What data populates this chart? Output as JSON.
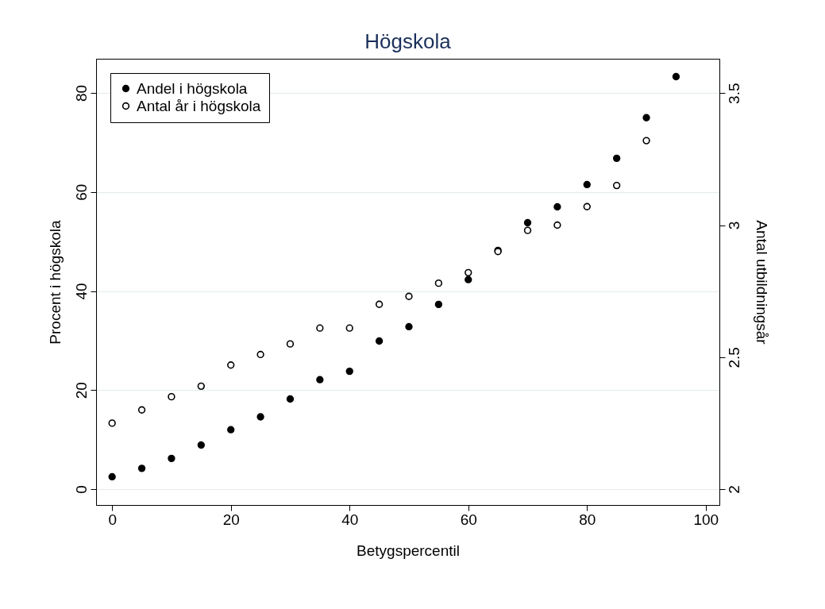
{
  "chart_data": {
    "type": "scatter",
    "title": "Högskola",
    "xlabel": "Betygspercentil",
    "ylabel": "Procent i högskola",
    "y2label": "Antal utbildningsår",
    "x": [
      0,
      5,
      10,
      15,
      20,
      25,
      30,
      35,
      40,
      45,
      50,
      55,
      60,
      65,
      70,
      75,
      80,
      85,
      90,
      95
    ],
    "series": [
      {
        "name": "Andel i högskola",
        "color": "#000000",
        "values": [
          2.5,
          4.2,
          6.2,
          8.9,
          12,
          14.6,
          18.2,
          22.1,
          23.8,
          29.9,
          32.8,
          37.3,
          42.3,
          48.2,
          53.8,
          57,
          61.5,
          66.8,
          75,
          83.3
        ]
      },
      {
        "name": "Antal år i högskola",
        "color": "#000000",
        "axis": "y2",
        "values": [
          2.25,
          2.3,
          2.35,
          2.39,
          2.47,
          2.51,
          2.55,
          2.61,
          2.61,
          2.7,
          2.73,
          2.78,
          2.82,
          2.9,
          2.98,
          3.0,
          3.07,
          3.15,
          3.32,
          null
        ]
      }
    ],
    "xlim": [
      -2.7,
      102.3
    ],
    "xticks": [
      0,
      20,
      40,
      60,
      80,
      100
    ],
    "ylim": [
      -3.2,
      86.9
    ],
    "yticks": [
      0,
      20,
      40,
      60,
      80
    ],
    "y2lim": [
      1.94,
      3.63
    ],
    "y2ticks": [
      2,
      2.5,
      3,
      3.5
    ],
    "grid": "y",
    "legend": "top left",
    "marker": "circle"
  }
}
